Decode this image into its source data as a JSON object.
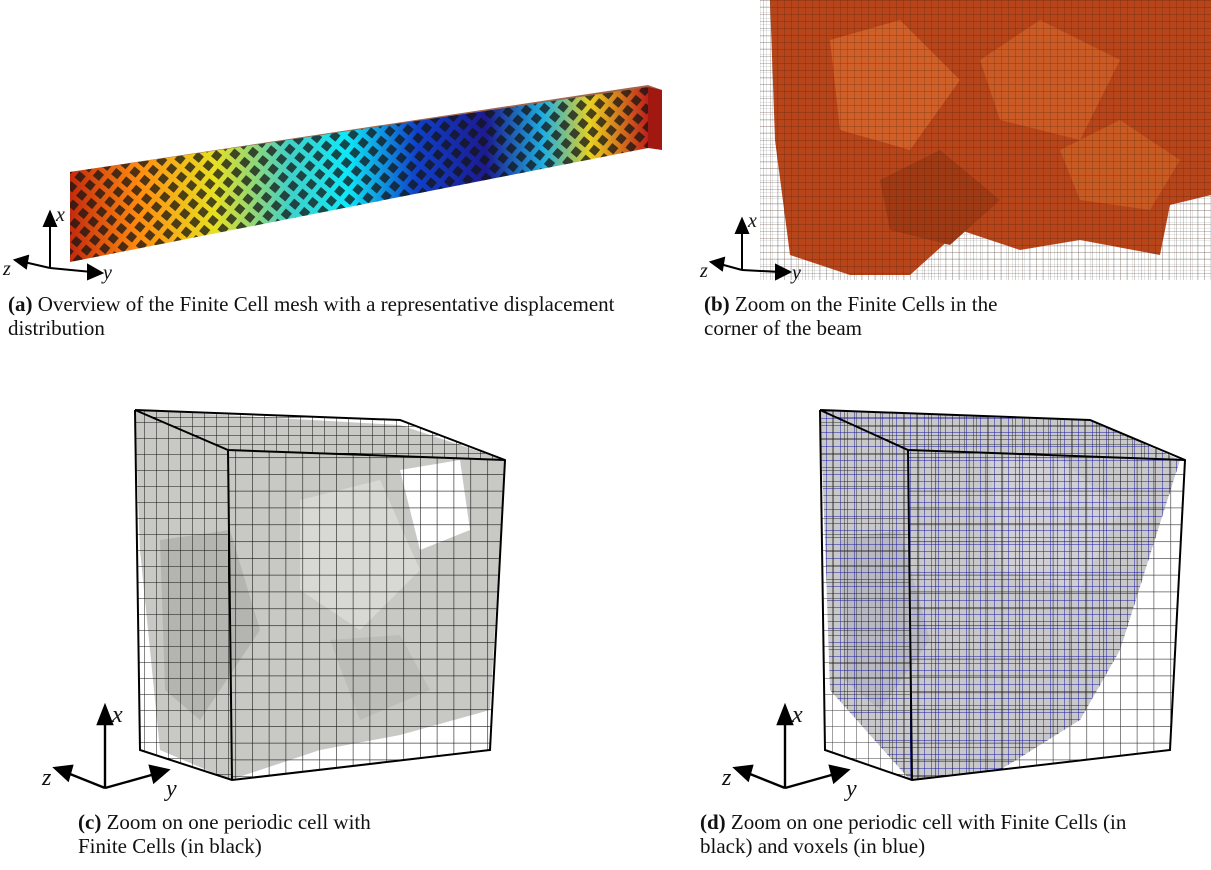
{
  "figure": {
    "panels": [
      {
        "label": "(a)",
        "caption": "Overview of the Finite Cell mesh with a representative displacement distribution",
        "axes": {
          "x": "x",
          "y": "y",
          "z": "z"
        },
        "icon": "beam-displacement-render"
      },
      {
        "label": "(b)",
        "caption": "Zoom on the Finite Cells in the corner of the beam",
        "axes": {
          "x": "x",
          "y": "y",
          "z": "z"
        },
        "icon": "beam-corner-zoom-render"
      },
      {
        "label": "(c)",
        "caption": "Zoom on one periodic cell with Finite Cells (in black)",
        "axes": {
          "x": "x",
          "y": "y",
          "z": "z"
        },
        "icon": "periodic-cell-render"
      },
      {
        "label": "(d)",
        "caption": "Zoom on one periodic cell with Finite Cells (in black) and voxels (in blue)",
        "axes": {
          "x": "x",
          "y": "y",
          "z": "z"
        },
        "icon": "periodic-cell-voxel-render"
      }
    ],
    "colors": {
      "mesh_line": "#111111",
      "voxel_line": "#1a1aa8",
      "solid_gray": "#c8c8c4",
      "beam_orange": "#c8501a",
      "beam_red": "#b02a10"
    }
  }
}
